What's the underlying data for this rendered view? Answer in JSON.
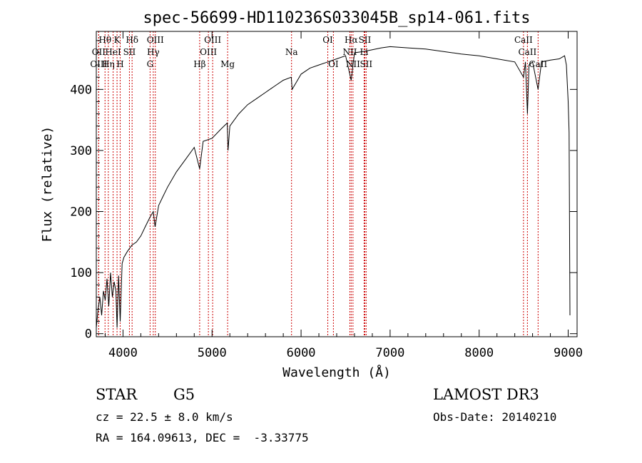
{
  "chart_data": {
    "type": "line",
    "title": "spec-56699-HD110236S033045B_sp14-061.fits",
    "xlabel": "Wavelength (Å)",
    "ylabel": "Flux (relative)",
    "xlim": [
      3700,
      9100
    ],
    "ylim": [
      -5,
      495
    ],
    "xticks": [
      4000,
      5000,
      6000,
      7000,
      8000,
      9000
    ],
    "yticks": [
      0,
      100,
      200,
      300,
      400
    ],
    "grid": false,
    "series": [
      {
        "name": "flux",
        "x": [
          3700,
          3720,
          3740,
          3760,
          3780,
          3800,
          3820,
          3840,
          3860,
          3880,
          3900,
          3920,
          3933,
          3950,
          3968,
          3990,
          4010,
          4050,
          4100,
          4150,
          4200,
          4250,
          4300,
          4340,
          4360,
          4400,
          4450,
          4500,
          4600,
          4700,
          4800,
          4861,
          4900,
          5000,
          5100,
          5170,
          5180,
          5200,
          5300,
          5400,
          5500,
          5600,
          5700,
          5800,
          5890,
          5900,
          6000,
          6100,
          6200,
          6300,
          6400,
          6500,
          6563,
          6600,
          6700,
          6800,
          6900,
          7000,
          7200,
          7400,
          7600,
          7800,
          8000,
          8200,
          8400,
          8498,
          8520,
          8542,
          8560,
          8600,
          8662,
          8700,
          8800,
          8900,
          8960,
          8980,
          9000,
          9010,
          9020
        ],
        "y": [
          10,
          40,
          60,
          30,
          70,
          55,
          90,
          45,
          100,
          60,
          85,
          70,
          10,
          95,
          20,
          115,
          125,
          135,
          145,
          150,
          160,
          175,
          190,
          200,
          175,
          210,
          225,
          240,
          265,
          285,
          305,
          270,
          315,
          320,
          335,
          345,
          300,
          340,
          360,
          375,
          385,
          395,
          405,
          415,
          420,
          400,
          425,
          435,
          440,
          445,
          450,
          455,
          415,
          460,
          462,
          465,
          468,
          470,
          468,
          466,
          462,
          458,
          455,
          450,
          445,
          420,
          445,
          360,
          440,
          445,
          400,
          445,
          448,
          450,
          455,
          440,
          380,
          330,
          30
        ]
      }
    ],
    "lines": [
      {
        "name": "Hθ",
        "x": 3798,
        "row": 0
      },
      {
        "name": "OII",
        "x": 3727,
        "row": 1
      },
      {
        "name": "OIII",
        "x": 3727,
        "row": 2
      },
      {
        "name": "Hη",
        "x": 3835,
        "row": 2
      },
      {
        "name": "K",
        "x": 3933,
        "row": 0
      },
      {
        "name": "HeI",
        "x": 3889,
        "row": 1
      },
      {
        "name": "H",
        "x": 3968,
        "row": 2
      },
      {
        "name": "Hδ",
        "x": 4102,
        "row": 0
      },
      {
        "name": "SII",
        "x": 4072,
        "row": 1
      },
      {
        "name": "OIII",
        "x": 4363,
        "row": 0
      },
      {
        "name": "Hγ",
        "x": 4340,
        "row": 1
      },
      {
        "name": "G",
        "x": 4304,
        "row": 2
      },
      {
        "name": "Hβ",
        "x": 4861,
        "row": 2
      },
      {
        "name": "OIII",
        "x": 5007,
        "row": 0
      },
      {
        "name": "OIII",
        "x": 4959,
        "row": 1
      },
      {
        "name": "Mg",
        "x": 5175,
        "row": 2
      },
      {
        "name": "Na",
        "x": 5893,
        "row": 1
      },
      {
        "name": "OI",
        "x": 6300,
        "row": 0
      },
      {
        "name": "OI",
        "x": 6363,
        "row": 2
      },
      {
        "name": "NII",
        "x": 6548,
        "row": 1
      },
      {
        "name": "NII",
        "x": 6583,
        "row": 2
      },
      {
        "name": "Hα",
        "x": 6563,
        "row": 0
      },
      {
        "name": "SII",
        "x": 6716,
        "row": 0
      },
      {
        "name": "Li",
        "x": 6708,
        "row": 1
      },
      {
        "name": "SII",
        "x": 6731,
        "row": 2
      },
      {
        "name": "CaII",
        "x": 8498,
        "row": 0
      },
      {
        "name": "CaII",
        "x": 8542,
        "row": 1
      },
      {
        "name": "CaII",
        "x": 8662,
        "row": 2
      }
    ]
  },
  "info": {
    "object_class": "STAR",
    "subclass": "G5",
    "survey": "LAMOST DR3",
    "redshift": "cz = 22.5 ± 8.0 km/s",
    "obs_date": "Obs-Date: 20140210",
    "coords": "RA = 164.09613, DEC =  -3.33775"
  },
  "colors": {
    "line": "#000000",
    "marker": "#cc0000",
    "background": "#ffffff"
  }
}
